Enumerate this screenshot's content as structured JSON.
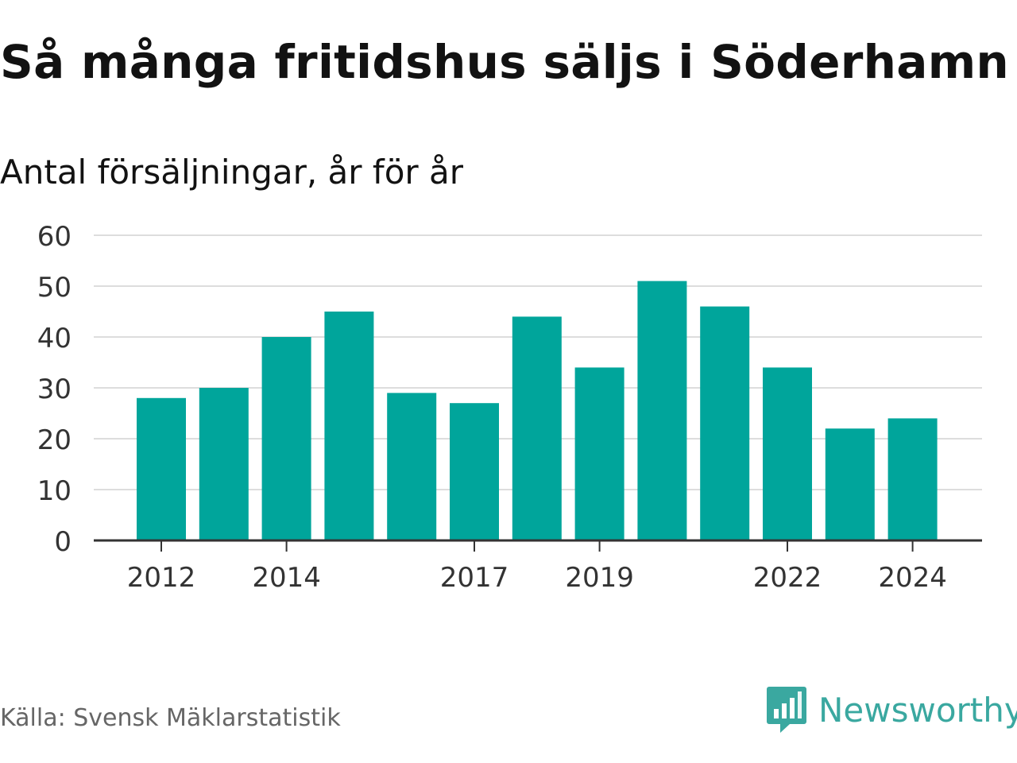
{
  "title": "Så många fritidshus säljs i Söderhamn",
  "subtitle": "Antal försäljningar, år för år",
  "source": "Källa: Svensk Mäklarstatistik",
  "brand": {
    "name": "Newsworthy",
    "icon": "newsworthy-logo-icon",
    "color": "#3aa8a0"
  },
  "chart_data": {
    "type": "bar",
    "categories": [
      "2012",
      "2013",
      "2014",
      "2015",
      "2016",
      "2017",
      "2018",
      "2019",
      "2020",
      "2021",
      "2022",
      "2023",
      "2024"
    ],
    "values": [
      28,
      30,
      40,
      45,
      29,
      27,
      44,
      34,
      51,
      46,
      34,
      22,
      24
    ],
    "x_tick_labels": [
      "2012",
      "2014",
      "2017",
      "2019",
      "2022",
      "2024"
    ],
    "y_ticks": [
      0,
      10,
      20,
      30,
      40,
      50,
      60
    ],
    "ylim": [
      0,
      60
    ],
    "grid": true,
    "bar_color": "#00a59b",
    "gridline_color": "#dddddd",
    "axis_color": "#333333"
  }
}
